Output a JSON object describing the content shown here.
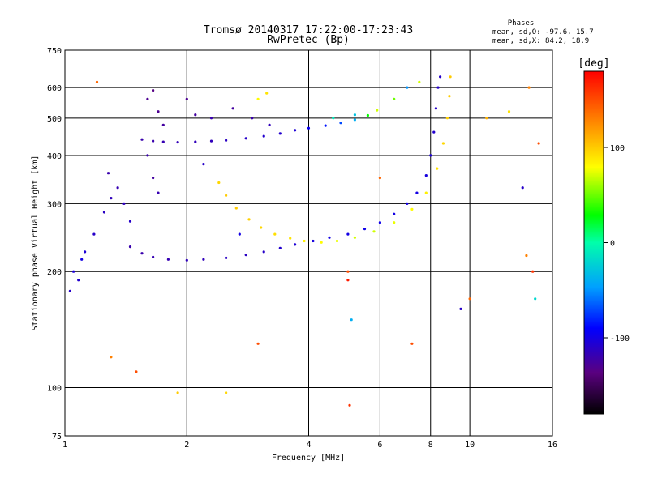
{
  "chart_data": {
    "type": "scatter",
    "title": "Tromsø 20140317 17:22:00-17:23:43",
    "subtitle": "RwPretec (Bp)",
    "xlabel": "Frequency [MHz]",
    "ylabel": "Stationary phase Virtual Height [km]",
    "x_scale": "log",
    "y_scale": "log",
    "xlim": [
      1,
      16
    ],
    "ylim": [
      75,
      750
    ],
    "x_ticks": [
      1,
      2,
      4,
      6,
      8,
      10,
      16
    ],
    "y_ticks": [
      75,
      100,
      200,
      300,
      400,
      500,
      600,
      750
    ],
    "grid": true,
    "phases_header": "Phases",
    "phases_lines": [
      "mean, sd,O: -97.6, 15.7",
      "mean, sd,X:  84.2, 18.9"
    ],
    "colorbar": {
      "label": "[deg]",
      "range": [
        -180,
        180
      ],
      "ticks": [
        100,
        0,
        -100
      ]
    },
    "series": [
      {
        "points": [
          {
            "x": 1.55,
            "y": 440,
            "c": -120
          },
          {
            "x": 1.65,
            "y": 436,
            "c": -120
          },
          {
            "x": 1.75,
            "y": 434,
            "c": -118
          },
          {
            "x": 1.9,
            "y": 433,
            "c": -116
          },
          {
            "x": 2.1,
            "y": 434,
            "c": -115
          },
          {
            "x": 2.3,
            "y": 436,
            "c": -115
          },
          {
            "x": 2.5,
            "y": 438,
            "c": -112
          },
          {
            "x": 2.8,
            "y": 443,
            "c": -110
          },
          {
            "x": 3.1,
            "y": 449,
            "c": -108
          },
          {
            "x": 3.4,
            "y": 456,
            "c": -108
          },
          {
            "x": 3.7,
            "y": 465,
            "c": -105
          },
          {
            "x": 4.0,
            "y": 471,
            "c": -95
          },
          {
            "x": 4.4,
            "y": 478,
            "c": -85
          },
          {
            "x": 4.8,
            "y": 486,
            "c": -70
          },
          {
            "x": 5.2,
            "y": 495,
            "c": -40
          },
          {
            "x": 5.6,
            "y": 508,
            "c": 30
          },
          {
            "x": 5.9,
            "y": 524,
            "c": 70
          },
          {
            "x": 1.45,
            "y": 232,
            "c": -120
          },
          {
            "x": 1.55,
            "y": 223,
            "c": -120
          },
          {
            "x": 1.65,
            "y": 218,
            "c": -118
          },
          {
            "x": 1.8,
            "y": 215,
            "c": -118
          },
          {
            "x": 2.0,
            "y": 214,
            "c": -115
          },
          {
            "x": 2.2,
            "y": 215,
            "c": -115
          },
          {
            "x": 2.5,
            "y": 217,
            "c": -112
          },
          {
            "x": 2.8,
            "y": 221,
            "c": -112
          },
          {
            "x": 3.1,
            "y": 225,
            "c": -110
          },
          {
            "x": 3.4,
            "y": 230,
            "c": -108
          },
          {
            "x": 3.7,
            "y": 235,
            "c": -105
          },
          {
            "x": 4.1,
            "y": 240,
            "c": -102
          },
          {
            "x": 4.5,
            "y": 245,
            "c": -100
          },
          {
            "x": 5.0,
            "y": 250,
            "c": -100
          },
          {
            "x": 5.5,
            "y": 258,
            "c": -98
          },
          {
            "x": 6.0,
            "y": 268,
            "c": -98
          },
          {
            "x": 6.5,
            "y": 282,
            "c": -100
          },
          {
            "x": 7.0,
            "y": 300,
            "c": -100
          },
          {
            "x": 7.4,
            "y": 320,
            "c": -100
          },
          {
            "x": 7.8,
            "y": 355,
            "c": -102
          },
          {
            "x": 8.0,
            "y": 400,
            "c": -105
          },
          {
            "x": 8.15,
            "y": 460,
            "c": -108
          },
          {
            "x": 8.25,
            "y": 530,
            "c": -110
          },
          {
            "x": 8.35,
            "y": 600,
            "c": -110
          },
          {
            "x": 8.45,
            "y": 640,
            "c": -110
          },
          {
            "x": 2.4,
            "y": 340,
            "c": 95
          },
          {
            "x": 2.5,
            "y": 315,
            "c": 100
          },
          {
            "x": 2.65,
            "y": 292,
            "c": 100
          },
          {
            "x": 2.85,
            "y": 273,
            "c": 98
          },
          {
            "x": 3.05,
            "y": 260,
            "c": 95
          },
          {
            "x": 3.3,
            "y": 250,
            "c": 92
          },
          {
            "x": 3.6,
            "y": 244,
            "c": 90
          },
          {
            "x": 3.9,
            "y": 240,
            "c": 85
          },
          {
            "x": 4.3,
            "y": 238,
            "c": 80
          },
          {
            "x": 4.7,
            "y": 240,
            "c": 75
          },
          {
            "x": 5.2,
            "y": 245,
            "c": 70
          },
          {
            "x": 5.8,
            "y": 254,
            "c": 70
          },
          {
            "x": 6.5,
            "y": 268,
            "c": 75
          },
          {
            "x": 7.2,
            "y": 290,
            "c": 80
          },
          {
            "x": 7.8,
            "y": 320,
            "c": 85
          },
          {
            "x": 8.3,
            "y": 370,
            "c": 90
          },
          {
            "x": 8.6,
            "y": 430,
            "c": 95
          },
          {
            "x": 8.8,
            "y": 500,
            "c": 98
          },
          {
            "x": 8.9,
            "y": 570,
            "c": 100
          },
          {
            "x": 8.95,
            "y": 640,
            "c": 100
          },
          {
            "x": 1.05,
            "y": 200,
            "c": -105
          },
          {
            "x": 1.08,
            "y": 190,
            "c": -108
          },
          {
            "x": 1.03,
            "y": 178,
            "c": -110
          },
          {
            "x": 1.1,
            "y": 215,
            "c": -100
          },
          {
            "x": 1.12,
            "y": 225,
            "c": -105
          },
          {
            "x": 1.18,
            "y": 250,
            "c": -110
          },
          {
            "x": 1.25,
            "y": 285,
            "c": -112
          },
          {
            "x": 1.3,
            "y": 310,
            "c": -115
          },
          {
            "x": 1.35,
            "y": 330,
            "c": -118
          },
          {
            "x": 1.4,
            "y": 300,
            "c": -115
          },
          {
            "x": 1.28,
            "y": 360,
            "c": -120
          },
          {
            "x": 1.45,
            "y": 270,
            "c": -110
          },
          {
            "x": 1.6,
            "y": 560,
            "c": -130
          },
          {
            "x": 1.65,
            "y": 590,
            "c": -135
          },
          {
            "x": 1.7,
            "y": 520,
            "c": -130
          },
          {
            "x": 1.75,
            "y": 480,
            "c": -125
          },
          {
            "x": 2.0,
            "y": 560,
            "c": -130
          },
          {
            "x": 2.1,
            "y": 510,
            "c": -125
          },
          {
            "x": 2.3,
            "y": 500,
            "c": -120
          },
          {
            "x": 2.6,
            "y": 530,
            "c": -125
          },
          {
            "x": 2.9,
            "y": 500,
            "c": -120
          },
          {
            "x": 3.2,
            "y": 480,
            "c": -115
          },
          {
            "x": 1.6,
            "y": 400,
            "c": -120
          },
          {
            "x": 1.65,
            "y": 350,
            "c": -125
          },
          {
            "x": 1.7,
            "y": 320,
            "c": -118
          },
          {
            "x": 3.15,
            "y": 580,
            "c": 90
          },
          {
            "x": 3.0,
            "y": 560,
            "c": 80
          },
          {
            "x": 5.2,
            "y": 510,
            "c": -30
          },
          {
            "x": 4.6,
            "y": 500,
            "c": -10
          },
          {
            "x": 6.5,
            "y": 560,
            "c": 50
          },
          {
            "x": 7.0,
            "y": 600,
            "c": -50
          },
          {
            "x": 7.5,
            "y": 620,
            "c": 70
          },
          {
            "x": 2.5,
            "y": 97,
            "c": 95
          },
          {
            "x": 1.9,
            "y": 97,
            "c": 100
          },
          {
            "x": 5.0,
            "y": 200,
            "c": 150
          },
          {
            "x": 5.0,
            "y": 190,
            "c": 170
          },
          {
            "x": 5.05,
            "y": 90,
            "c": 160
          },
          {
            "x": 5.1,
            "y": 150,
            "c": -40
          },
          {
            "x": 9.5,
            "y": 160,
            "c": -110
          },
          {
            "x": 10.0,
            "y": 170,
            "c": 140
          },
          {
            "x": 13.5,
            "y": 330,
            "c": -110
          },
          {
            "x": 14.0,
            "y": 600,
            "c": 130
          },
          {
            "x": 13.8,
            "y": 220,
            "c": 130
          },
          {
            "x": 14.3,
            "y": 200,
            "c": 160
          },
          {
            "x": 14.5,
            "y": 170,
            "c": -20
          },
          {
            "x": 1.3,
            "y": 120,
            "c": 130
          },
          {
            "x": 1.5,
            "y": 110,
            "c": 150
          },
          {
            "x": 1.2,
            "y": 620,
            "c": 140
          },
          {
            "x": 11.0,
            "y": 500,
            "c": 110
          },
          {
            "x": 12.5,
            "y": 520,
            "c": 90
          },
          {
            "x": 6.0,
            "y": 350,
            "c": 140
          },
          {
            "x": 7.2,
            "y": 130,
            "c": 150
          },
          {
            "x": 3.0,
            "y": 130,
            "c": 150
          },
          {
            "x": 2.7,
            "y": 250,
            "c": -100
          },
          {
            "x": 2.2,
            "y": 380,
            "c": -110
          },
          {
            "x": 14.8,
            "y": 430,
            "c": 150
          }
        ]
      }
    ]
  }
}
